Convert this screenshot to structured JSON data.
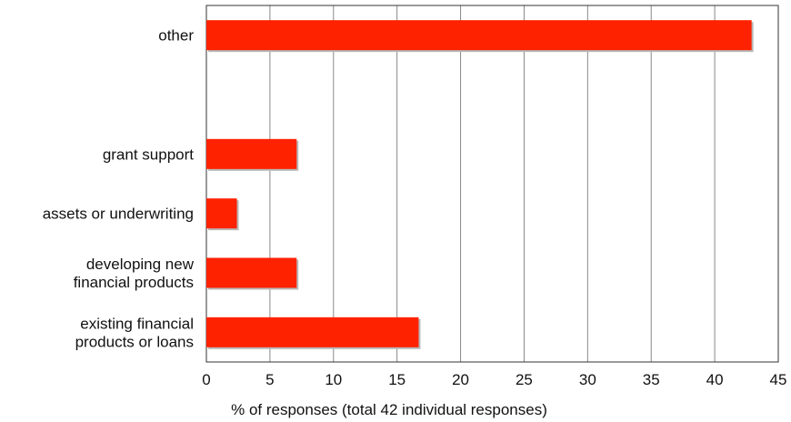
{
  "chart_data": {
    "type": "bar",
    "orientation": "horizontal",
    "categories": [
      "other",
      "",
      "grant support",
      "assets or underwriting",
      "developing new\nfinancial products",
      "existing financial\nproducts or loans"
    ],
    "values": [
      42.9,
      null,
      7.1,
      2.4,
      7.1,
      16.7
    ],
    "xlabel": "% of responses (total 42 individual responses)",
    "ylabel": "",
    "xlim": [
      0,
      45
    ],
    "xticks": [
      0,
      5,
      10,
      15,
      20,
      25,
      30,
      35,
      40,
      45
    ],
    "grid": "vertical",
    "colors": {
      "bar": "#ff2200",
      "bar_shadow": "#b8b8b8",
      "grid": "#888888",
      "axis": "#333333"
    }
  }
}
